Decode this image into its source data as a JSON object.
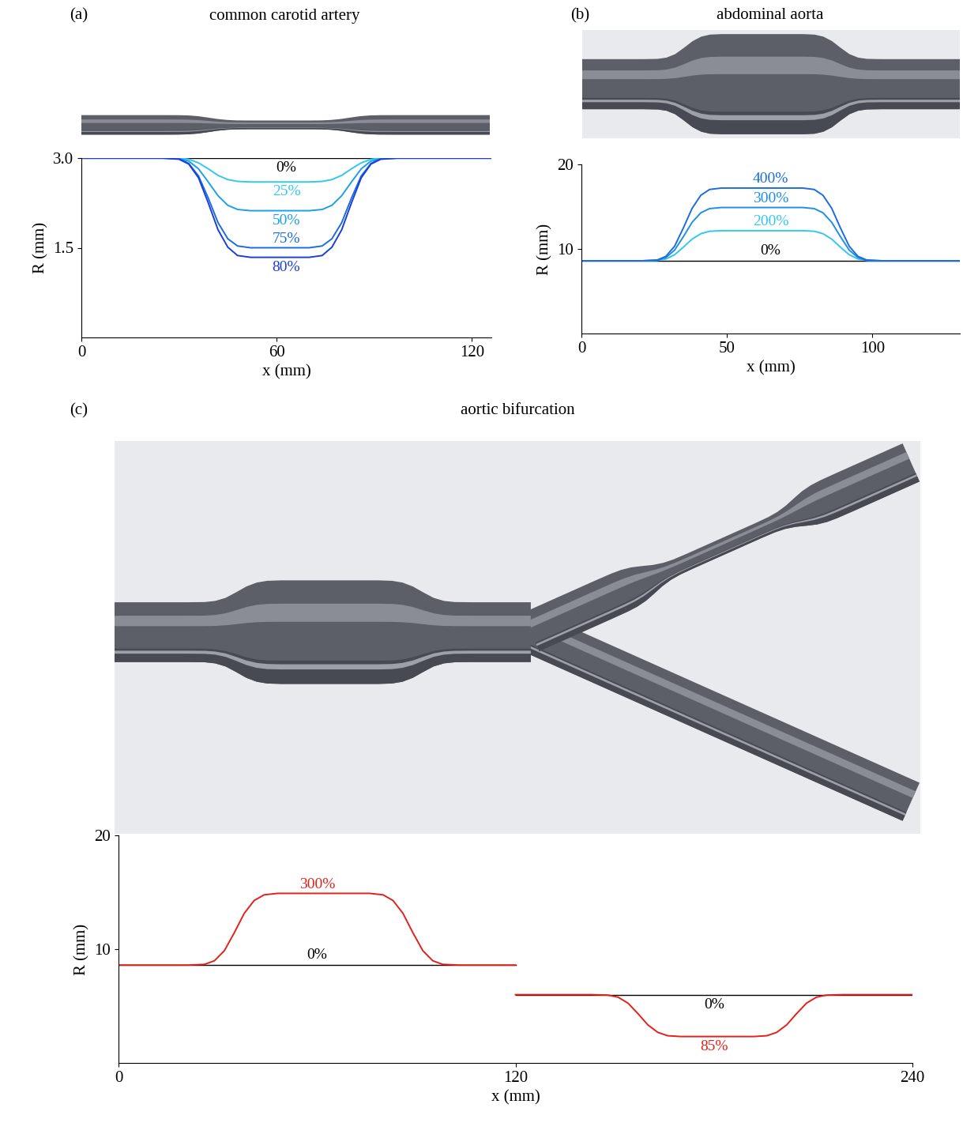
{
  "chart_data": [
    {
      "type": "line",
      "panel_label": "(a)",
      "title": "common carotid artery",
      "x_label": "x (mm)",
      "y_label": "R (mm)",
      "xlim": [
        0,
        126
      ],
      "ylim": [
        0,
        3.0
      ],
      "xticks": [
        0,
        60,
        120
      ],
      "yticks": [
        1.5,
        3.0
      ],
      "series": [
        {
          "name": "0%",
          "color": "#000000",
          "x": [
            0,
            126
          ],
          "values": [
            3.0,
            3.0
          ]
        },
        {
          "name": "25%",
          "color": "#33c7ee",
          "x": [
            0,
            25,
            30,
            33,
            36,
            39,
            42,
            45,
            48,
            52,
            61,
            70,
            74,
            77,
            80,
            83,
            86,
            89,
            92,
            97,
            126
          ],
          "values": [
            3.0,
            3.0,
            3.0,
            2.98,
            2.92,
            2.82,
            2.71,
            2.64,
            2.61,
            2.6,
            2.6,
            2.6,
            2.61,
            2.64,
            2.71,
            2.82,
            2.92,
            2.98,
            3.0,
            3.0,
            3.0
          ]
        },
        {
          "name": "50%",
          "color": "#1da0e6",
          "x": [
            0,
            25,
            30,
            33,
            36,
            39,
            42,
            45,
            48,
            52,
            61,
            70,
            74,
            77,
            80,
            83,
            86,
            89,
            92,
            97,
            126
          ],
          "values": [
            3.0,
            3.0,
            2.99,
            2.95,
            2.82,
            2.6,
            2.37,
            2.21,
            2.14,
            2.12,
            2.12,
            2.12,
            2.14,
            2.21,
            2.37,
            2.6,
            2.82,
            2.95,
            2.99,
            3.0,
            3.0
          ]
        },
        {
          "name": "75%",
          "color": "#1c6ce0",
          "x": [
            0,
            25,
            30,
            33,
            36,
            39,
            42,
            45,
            48,
            52,
            61,
            70,
            74,
            77,
            80,
            83,
            86,
            89,
            92,
            97,
            126
          ],
          "values": [
            3.0,
            3.0,
            2.99,
            2.91,
            2.7,
            2.33,
            1.92,
            1.65,
            1.53,
            1.5,
            1.5,
            1.5,
            1.53,
            1.65,
            1.92,
            2.33,
            2.7,
            2.91,
            2.99,
            3.0,
            3.0
          ]
        },
        {
          "name": "80%",
          "color": "#1a3fd8",
          "x": [
            0,
            25,
            30,
            33,
            36,
            39,
            42,
            45,
            48,
            52,
            61,
            70,
            74,
            77,
            80,
            83,
            86,
            89,
            92,
            97,
            126
          ],
          "values": [
            3.0,
            3.0,
            2.98,
            2.9,
            2.67,
            2.25,
            1.8,
            1.51,
            1.37,
            1.34,
            1.34,
            1.34,
            1.37,
            1.51,
            1.8,
            2.25,
            2.67,
            2.9,
            2.98,
            3.0,
            3.0
          ]
        }
      ]
    },
    {
      "type": "line",
      "panel_label": "(b)",
      "title": "abdominal aorta",
      "x_label": "x (mm)",
      "y_label": "R (mm)",
      "xlim": [
        0,
        130
      ],
      "ylim": [
        0,
        20
      ],
      "xticks": [
        0,
        50,
        100
      ],
      "yticks": [
        10,
        20
      ],
      "series": [
        {
          "name": "0%",
          "color": "#000000",
          "x": [
            0,
            130
          ],
          "values": [
            8.6,
            8.6
          ]
        },
        {
          "name": "200%",
          "color": "#33c7ee",
          "x": [
            0,
            21,
            26,
            29,
            32,
            35,
            38,
            41,
            44,
            48,
            62,
            76,
            80,
            83,
            86,
            89,
            92,
            95,
            98,
            103,
            130
          ],
          "values": [
            8.6,
            8.6,
            8.64,
            8.81,
            9.31,
            10.2,
            11.16,
            11.8,
            12.09,
            12.16,
            12.16,
            12.16,
            12.09,
            11.8,
            11.16,
            10.2,
            9.31,
            8.81,
            8.64,
            8.6,
            8.6
          ]
        },
        {
          "name": "300%",
          "color": "#1d8fe6",
          "x": [
            0,
            21,
            26,
            29,
            32,
            35,
            38,
            41,
            44,
            48,
            62,
            76,
            80,
            83,
            86,
            89,
            92,
            95,
            98,
            103,
            130
          ],
          "values": [
            8.6,
            8.6,
            8.66,
            8.98,
            9.86,
            11.44,
            13.14,
            14.27,
            14.77,
            14.9,
            14.9,
            14.9,
            14.77,
            14.27,
            13.14,
            11.44,
            9.86,
            8.98,
            8.66,
            8.6,
            8.6
          ]
        },
        {
          "name": "400%",
          "color": "#1c6ce0",
          "x": [
            0,
            21,
            26,
            29,
            32,
            35,
            38,
            41,
            44,
            48,
            62,
            76,
            80,
            83,
            86,
            89,
            92,
            95,
            98,
            103,
            130
          ],
          "values": [
            8.6,
            8.6,
            8.69,
            9.12,
            10.32,
            12.47,
            14.79,
            16.34,
            17.03,
            17.2,
            17.2,
            17.2,
            17.03,
            16.34,
            14.79,
            12.47,
            10.32,
            9.12,
            8.69,
            8.6,
            8.6
          ]
        }
      ]
    },
    {
      "type": "line",
      "panel_label": "(c)",
      "title": "aortic bifurcation",
      "x_label": "x (mm)",
      "y_label": "R (mm)",
      "xlim": [
        0,
        240
      ],
      "ylim": [
        0,
        20
      ],
      "xticks": [
        0,
        120,
        240
      ],
      "yticks": [
        10,
        20
      ],
      "series": [
        {
          "name": "0%",
          "color": "#000000",
          "x": [
            0,
            120
          ],
          "values": [
            8.6,
            8.6
          ]
        },
        {
          "name": "300%",
          "color": "#e3211c",
          "x": [
            0,
            21,
            26,
            29,
            32,
            35,
            38,
            41,
            44,
            48,
            62,
            76,
            80,
            83,
            86,
            89,
            92,
            95,
            98,
            103,
            120
          ],
          "values": [
            8.6,
            8.6,
            8.66,
            8.98,
            9.86,
            11.44,
            13.14,
            14.27,
            14.77,
            14.9,
            14.9,
            14.9,
            14.77,
            14.27,
            13.14,
            11.44,
            9.86,
            8.98,
            8.66,
            8.6,
            8.6
          ]
        },
        {
          "name": "0%",
          "color": "#000000",
          "x": [
            120,
            240
          ],
          "values": [
            6.0,
            6.0
          ]
        },
        {
          "name": "85%",
          "color": "#e3211c",
          "x": [
            120,
            143,
            148,
            151,
            154,
            157,
            160,
            163,
            166,
            170,
            181,
            192,
            196,
            199,
            202,
            205,
            208,
            211,
            214,
            219,
            240
          ],
          "values": [
            6.0,
            6.0,
            5.96,
            5.78,
            5.26,
            4.34,
            3.35,
            2.69,
            2.39,
            2.32,
            2.32,
            2.32,
            2.39,
            2.69,
            3.35,
            4.34,
            5.26,
            5.78,
            5.96,
            6.0,
            6.0
          ]
        }
      ]
    }
  ]
}
